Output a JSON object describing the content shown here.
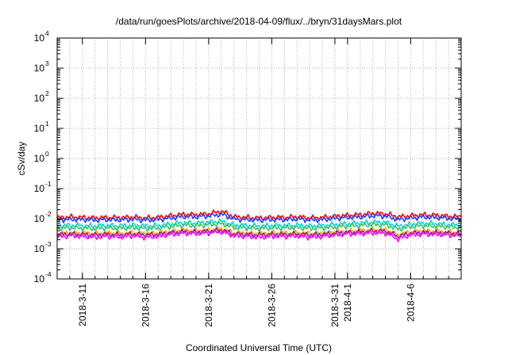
{
  "chart_data": {
    "type": "line",
    "title": "/data/run/goesPlots/archive/2018-04-09/flux/../bryn/31daysMars.plot",
    "xlabel": "Coordinated Universal Time (UTC)",
    "ylabel": "cSv/day",
    "y_scale": "log",
    "ylim": [
      0.0001,
      10000
    ],
    "xlim": [
      "2018-03-09",
      "2018-04-10"
    ],
    "grid": true,
    "y_ticks": [
      {
        "base": "10",
        "exp": "-4",
        "value": 0.0001
      },
      {
        "base": "10",
        "exp": "-3",
        "value": 0.001
      },
      {
        "base": "10",
        "exp": "-2",
        "value": 0.01
      },
      {
        "base": "10",
        "exp": "-1",
        "value": 0.1
      },
      {
        "base": "10",
        "exp": "0",
        "value": 1
      },
      {
        "base": "10",
        "exp": "1",
        "value": 10
      },
      {
        "base": "10",
        "exp": "2",
        "value": 100
      },
      {
        "base": "10",
        "exp": "3",
        "value": 1000
      },
      {
        "base": "10",
        "exp": "4",
        "value": 10000
      }
    ],
    "x_ticks": [
      {
        "label": "2018-3-11",
        "date": "2018-03-11"
      },
      {
        "label": "2018-3-16",
        "date": "2018-03-16"
      },
      {
        "label": "2018-3-21",
        "date": "2018-03-21"
      },
      {
        "label": "2018-3-26",
        "date": "2018-03-26"
      },
      {
        "label": "2018-3-31",
        "date": "2018-03-31"
      },
      {
        "label": "2018-4-1",
        "date": "2018-04-01"
      },
      {
        "label": "2018-4-6",
        "date": "2018-04-06"
      }
    ],
    "x_grid_dates": [
      "2018-03-10",
      "2018-03-11",
      "2018-03-12",
      "2018-03-13",
      "2018-03-14",
      "2018-03-15",
      "2018-03-16",
      "2018-03-17",
      "2018-03-18",
      "2018-03-19",
      "2018-03-20",
      "2018-03-21",
      "2018-03-22",
      "2018-03-23",
      "2018-03-24",
      "2018-03-25",
      "2018-03-26",
      "2018-03-27",
      "2018-03-28",
      "2018-03-29",
      "2018-03-30",
      "2018-03-31",
      "2018-04-01",
      "2018-04-02",
      "2018-04-03",
      "2018-04-04",
      "2018-04-05",
      "2018-04-06",
      "2018-04-07",
      "2018-04-08",
      "2018-04-09"
    ],
    "x": [
      "2018-03-09",
      "2018-03-10",
      "2018-03-11",
      "2018-03-12",
      "2018-03-13",
      "2018-03-14",
      "2018-03-15",
      "2018-03-16",
      "2018-03-17",
      "2018-03-18",
      "2018-03-19",
      "2018-03-20",
      "2018-03-21",
      "2018-03-22",
      "2018-03-23",
      "2018-03-24",
      "2018-03-25",
      "2018-03-26",
      "2018-03-27",
      "2018-03-28",
      "2018-03-29",
      "2018-03-30",
      "2018-03-31",
      "2018-04-01",
      "2018-04-02",
      "2018-04-03",
      "2018-04-04",
      "2018-04-05",
      "2018-04-06",
      "2018-04-07",
      "2018-04-08",
      "2018-04-09",
      "2018-04-10"
    ],
    "series": [
      {
        "color": "#ff0000",
        "values": [
          0.0105,
          0.0115,
          0.011,
          0.0105,
          0.011,
          0.0108,
          0.0112,
          0.0105,
          0.011,
          0.0125,
          0.014,
          0.0135,
          0.0145,
          0.0175,
          0.0115,
          0.011,
          0.0105,
          0.011,
          0.011,
          0.0115,
          0.0105,
          0.011,
          0.012,
          0.013,
          0.0135,
          0.015,
          0.0145,
          0.0115,
          0.0125,
          0.0135,
          0.013,
          0.012,
          0.0115
        ]
      },
      {
        "color": "#1e40ff",
        "values": [
          0.009,
          0.0095,
          0.0093,
          0.009,
          0.0093,
          0.0091,
          0.0095,
          0.009,
          0.0093,
          0.0105,
          0.0118,
          0.0115,
          0.0123,
          0.014,
          0.0097,
          0.0093,
          0.009,
          0.0093,
          0.0093,
          0.0097,
          0.009,
          0.0093,
          0.0102,
          0.011,
          0.0115,
          0.0125,
          0.0122,
          0.0092,
          0.0105,
          0.0114,
          0.011,
          0.0102,
          0.0097
        ]
      },
      {
        "color": "#00d8d8",
        "values": [
          0.0058,
          0.006,
          0.0059,
          0.0057,
          0.0059,
          0.0058,
          0.006,
          0.0057,
          0.0059,
          0.0066,
          0.0073,
          0.0071,
          0.0076,
          0.0082,
          0.0061,
          0.0059,
          0.0057,
          0.0059,
          0.0059,
          0.0061,
          0.0057,
          0.0059,
          0.0064,
          0.0068,
          0.0071,
          0.0077,
          0.0075,
          0.0056,
          0.0065,
          0.007,
          0.0068,
          0.0064,
          0.0061
        ]
      },
      {
        "color": "#40c060",
        "values": [
          0.0048,
          0.005,
          0.0049,
          0.0047,
          0.0049,
          0.0048,
          0.005,
          0.0047,
          0.0049,
          0.0055,
          0.0061,
          0.0059,
          0.0063,
          0.0068,
          0.0051,
          0.0049,
          0.0047,
          0.0049,
          0.0049,
          0.0051,
          0.0047,
          0.0049,
          0.0053,
          0.0057,
          0.0059,
          0.0064,
          0.0062,
          0.0045,
          0.0054,
          0.0058,
          0.0056,
          0.0053,
          0.0051
        ]
      },
      {
        "color": "#ffa500",
        "values": [
          0.0032,
          0.0034,
          0.0033,
          0.0032,
          0.0033,
          0.0032,
          0.0034,
          0.0032,
          0.0033,
          0.0037,
          0.0041,
          0.004,
          0.0042,
          0.0046,
          0.0034,
          0.0033,
          0.0032,
          0.0033,
          0.0033,
          0.0034,
          0.0032,
          0.0033,
          0.0036,
          0.0038,
          0.004,
          0.0043,
          0.0042,
          0.0029,
          0.0036,
          0.0039,
          0.0038,
          0.0036,
          0.0034
        ]
      },
      {
        "color": "#8b1a8b",
        "values": [
          0.0029,
          0.0031,
          0.003,
          0.0029,
          0.003,
          0.0029,
          0.0031,
          0.0029,
          0.003,
          0.0034,
          0.0037,
          0.0036,
          0.0038,
          0.0042,
          0.0031,
          0.003,
          0.0029,
          0.003,
          0.003,
          0.0031,
          0.0029,
          0.003,
          0.0033,
          0.0035,
          0.0036,
          0.0039,
          0.0038,
          0.0026,
          0.0033,
          0.0035,
          0.0034,
          0.0033,
          0.0031
        ]
      },
      {
        "color": "#ff00ff",
        "values": [
          0.0025,
          0.0027,
          0.0026,
          0.0024,
          0.0026,
          0.0025,
          0.0027,
          0.0024,
          0.0026,
          0.003,
          0.0033,
          0.0032,
          0.0034,
          0.0037,
          0.0027,
          0.0026,
          0.0024,
          0.0026,
          0.0026,
          0.0027,
          0.0024,
          0.0026,
          0.0029,
          0.0031,
          0.0032,
          0.0034,
          0.0033,
          0.0021,
          0.0029,
          0.0031,
          0.003,
          0.0029,
          0.0027
        ]
      }
    ]
  }
}
